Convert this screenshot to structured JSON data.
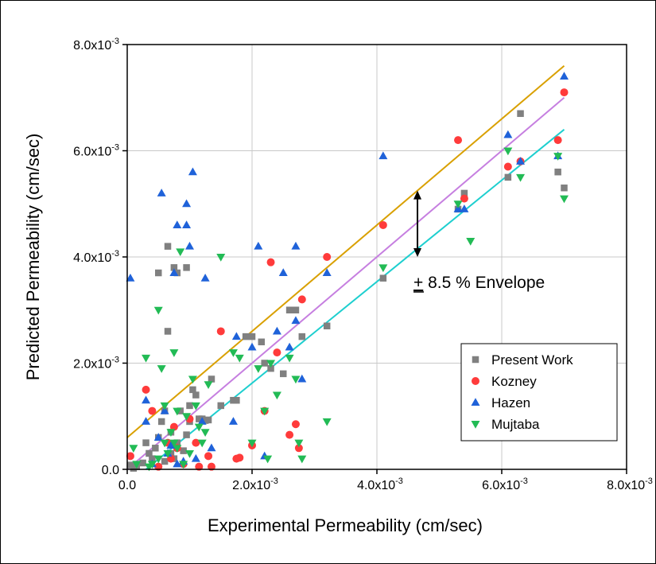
{
  "chart_data": {
    "type": "scatter",
    "title": "",
    "xlabel": "Experimental Permeability (cm/sec)",
    "ylabel": "Predicted Permeability (cm/sec)",
    "xlim": [
      0,
      0.008
    ],
    "ylim": [
      0,
      0.008
    ],
    "grid": true,
    "legend_position": "bottom-right",
    "x_ticks": [
      {
        "value": 0,
        "mant": "0.0",
        "exp": ""
      },
      {
        "value": 0.002,
        "mant": "2.0x10",
        "exp": "-3"
      },
      {
        "value": 0.004,
        "mant": "4.0x10",
        "exp": "-3"
      },
      {
        "value": 0.006,
        "mant": "6.0x10",
        "exp": "-3"
      },
      {
        "value": 0.008,
        "mant": "8.0x10",
        "exp": "-3"
      }
    ],
    "y_ticks": [
      {
        "value": 0,
        "mant": "0.0",
        "exp": ""
      },
      {
        "value": 0.002,
        "mant": "2.0x10",
        "exp": "-3"
      },
      {
        "value": 0.004,
        "mant": "4.0x10",
        "exp": "-3"
      },
      {
        "value": 0.006,
        "mant": "6.0x10",
        "exp": "-3"
      },
      {
        "value": 0.008,
        "mant": "8.0x10",
        "exp": "-3"
      }
    ],
    "series": [
      {
        "name": "Present Work",
        "marker": "square",
        "color": "#808080",
        "points": [
          [
            5e-05,
            8e-05
          ],
          [
            0.0001,
            2e-05
          ],
          [
            0.00015,
            5e-05
          ],
          [
            0.00025,
            0.00012
          ],
          [
            0.0003,
            0.0005
          ],
          [
            0.00035,
            0.0003
          ],
          [
            0.0004,
            0.0002
          ],
          [
            0.00045,
            0.0004
          ],
          [
            0.0005,
            0.0006
          ],
          [
            0.0005,
            0.0037
          ],
          [
            0.00055,
            0.0009
          ],
          [
            0.0006,
            0.0011
          ],
          [
            0.0006,
            0.00015
          ],
          [
            0.00065,
            0.0026
          ],
          [
            0.00065,
            0.0042
          ],
          [
            0.0007,
            0.0007
          ],
          [
            0.0007,
            0.0003
          ],
          [
            0.00075,
            0.0038
          ],
          [
            0.00075,
            0.0002
          ],
          [
            0.0008,
            0.0005
          ],
          [
            0.0008,
            0.0037
          ],
          [
            0.00085,
            0.0011
          ],
          [
            0.0009,
            0.00035
          ],
          [
            0.00095,
            0.00065
          ],
          [
            0.00095,
            0.0038
          ],
          [
            0.001,
            0.0009
          ],
          [
            0.001,
            0.0012
          ],
          [
            0.00105,
            0.0015
          ],
          [
            0.0011,
            0.0014
          ],
          [
            0.00115,
            0.00095
          ],
          [
            0.0012,
            0.00095
          ],
          [
            0.00125,
            0.00092
          ],
          [
            0.0013,
            0.00093
          ],
          [
            0.00135,
            0.0017
          ],
          [
            0.0015,
            0.0012
          ],
          [
            0.0017,
            0.0013
          ],
          [
            0.00175,
            0.0013
          ],
          [
            0.0019,
            0.0025
          ],
          [
            0.002,
            0.0025
          ],
          [
            0.00215,
            0.0024
          ],
          [
            0.0022,
            0.002
          ],
          [
            0.0023,
            0.0019
          ],
          [
            0.0025,
            0.0018
          ],
          [
            0.0026,
            0.003
          ],
          [
            0.0027,
            0.003
          ],
          [
            0.0028,
            0.0025
          ],
          [
            0.0032,
            0.0027
          ],
          [
            0.0041,
            0.0036
          ],
          [
            0.0053,
            0.0049
          ],
          [
            0.0054,
            0.0052
          ],
          [
            0.0061,
            0.0055
          ],
          [
            0.0063,
            0.0067
          ],
          [
            0.0069,
            0.0056
          ],
          [
            0.007,
            0.0053
          ]
        ]
      },
      {
        "name": "Kozney",
        "marker": "circle",
        "color": "#ff3b3b",
        "points": [
          [
            5e-05,
            0.00025
          ],
          [
            0.0003,
            0.0015
          ],
          [
            0.0004,
            0.0011
          ],
          [
            0.0005,
            5e-05
          ],
          [
            0.00065,
            0.0005
          ],
          [
            0.0007,
            0.0002
          ],
          [
            0.00075,
            0.0008
          ],
          [
            0.0008,
            0.0004
          ],
          [
            0.0009,
            0.0001
          ],
          [
            0.001,
            0.00095
          ],
          [
            0.0011,
            0.0005
          ],
          [
            0.00115,
            5e-05
          ],
          [
            0.0013,
            0.00025
          ],
          [
            0.00135,
            5e-05
          ],
          [
            0.0015,
            0.0026
          ],
          [
            0.00175,
            0.0002
          ],
          [
            0.0018,
            0.00022
          ],
          [
            0.002,
            0.00045
          ],
          [
            0.0022,
            0.0011
          ],
          [
            0.0023,
            0.0039
          ],
          [
            0.0024,
            0.0022
          ],
          [
            0.0026,
            0.00065
          ],
          [
            0.0027,
            0.00085
          ],
          [
            0.0028,
            0.0032
          ],
          [
            0.00275,
            0.0004
          ],
          [
            0.0032,
            0.004
          ],
          [
            0.0041,
            0.0046
          ],
          [
            0.0053,
            0.0062
          ],
          [
            0.0054,
            0.0051
          ],
          [
            0.0061,
            0.0057
          ],
          [
            0.0063,
            0.0058
          ],
          [
            0.0069,
            0.0062
          ],
          [
            0.007,
            0.0071
          ]
        ]
      },
      {
        "name": "Hazen",
        "marker": "triangle-up",
        "color": "#1f62d9",
        "points": [
          [
            5e-05,
            0.0036
          ],
          [
            0.0003,
            0.0009
          ],
          [
            0.0003,
            0.0013
          ],
          [
            0.0004,
            0.0001
          ],
          [
            0.0005,
            0.0006
          ],
          [
            0.00055,
            0.0052
          ],
          [
            0.0006,
            0.0011
          ],
          [
            0.00065,
            0.0003
          ],
          [
            0.0007,
            0.00045
          ],
          [
            0.00075,
            0.0037
          ],
          [
            0.0008,
            0.0046
          ],
          [
            0.0008,
            0.0001
          ],
          [
            0.0009,
            0.00015
          ],
          [
            0.00095,
            0.0046
          ],
          [
            0.00095,
            0.005
          ],
          [
            0.001,
            0.0042
          ],
          [
            0.00105,
            0.0056
          ],
          [
            0.0011,
            0.0002
          ],
          [
            0.0012,
            0.0009
          ],
          [
            0.00125,
            0.0036
          ],
          [
            0.00135,
            0.0004
          ],
          [
            0.0017,
            0.0009
          ],
          [
            0.00175,
            0.0025
          ],
          [
            0.002,
            0.0023
          ],
          [
            0.0021,
            0.0042
          ],
          [
            0.0022,
            0.00025
          ],
          [
            0.0024,
            0.0026
          ],
          [
            0.0025,
            0.0037
          ],
          [
            0.0026,
            0.0023
          ],
          [
            0.0027,
            0.0028
          ],
          [
            0.0027,
            0.0042
          ],
          [
            0.0028,
            0.0017
          ],
          [
            0.0032,
            0.0037
          ],
          [
            0.0041,
            0.0059
          ],
          [
            0.0053,
            0.0049
          ],
          [
            0.0054,
            0.0049
          ],
          [
            0.0061,
            0.0063
          ],
          [
            0.0063,
            0.0058
          ],
          [
            0.0069,
            0.0059
          ],
          [
            0.007,
            0.0074
          ]
        ]
      },
      {
        "name": "Mujtaba",
        "marker": "triangle-down",
        "color": "#22bb55",
        "points": [
          [
            0.0001,
            0.0004
          ],
          [
            0.00015,
            0.0001
          ],
          [
            0.0003,
            0.0021
          ],
          [
            0.00035,
            5e-05
          ],
          [
            0.0004,
            0.0001
          ],
          [
            0.0005,
            0.003
          ],
          [
            0.0005,
            0.0002
          ],
          [
            0.00055,
            0.0019
          ],
          [
            0.0006,
            0.0005
          ],
          [
            0.0006,
            0.0012
          ],
          [
            0.00065,
            0.0003
          ],
          [
            0.0007,
            0.0007
          ],
          [
            0.00075,
            0.0022
          ],
          [
            0.00075,
            0.0005
          ],
          [
            0.0008,
            0.0004
          ],
          [
            0.0008,
            0.0011
          ],
          [
            0.00085,
            0.0041
          ],
          [
            0.0009,
            0.0001
          ],
          [
            0.00095,
            0.001
          ],
          [
            0.001,
            0.0003
          ],
          [
            0.00105,
            0.0017
          ],
          [
            0.0011,
            0.0012
          ],
          [
            0.00115,
            0.0008
          ],
          [
            0.0012,
            0.0005
          ],
          [
            0.00125,
            0.0007
          ],
          [
            0.0013,
            0.0016
          ],
          [
            0.0015,
            0.004
          ],
          [
            0.0017,
            0.0022
          ],
          [
            0.0018,
            0.0021
          ],
          [
            0.002,
            0.0005
          ],
          [
            0.0021,
            0.0019
          ],
          [
            0.0022,
            0.0011
          ],
          [
            0.00225,
            0.0002
          ],
          [
            0.0023,
            0.002
          ],
          [
            0.0024,
            0.0014
          ],
          [
            0.0026,
            0.0021
          ],
          [
            0.0027,
            0.0017
          ],
          [
            0.00275,
            0.0005
          ],
          [
            0.0028,
            0.0002
          ],
          [
            0.0032,
            0.0009
          ],
          [
            0.0041,
            0.0038
          ],
          [
            0.0053,
            0.005
          ],
          [
            0.0055,
            0.0043
          ],
          [
            0.0061,
            0.006
          ],
          [
            0.0063,
            0.0055
          ],
          [
            0.0069,
            0.0059
          ],
          [
            0.007,
            0.0051
          ]
        ]
      }
    ],
    "fit_lines": [
      {
        "color": "#d9a000",
        "x": [
          0,
          0.007
        ],
        "y": [
          0.0006,
          0.0076
        ]
      },
      {
        "color": "#c67fe0",
        "x": [
          0,
          0.007
        ],
        "y": [
          0.0,
          0.007
        ]
      },
      {
        "color": "#1ecfcf",
        "x": [
          0.0003,
          0.007
        ],
        "y": [
          0.0,
          0.0064
        ]
      }
    ],
    "annotation": {
      "label_prefix": "+",
      "label_rest": " 8.5 % Envelope",
      "arrow_x": 0.00465,
      "arrow_y": [
        0.004,
        0.00525
      ]
    }
  }
}
